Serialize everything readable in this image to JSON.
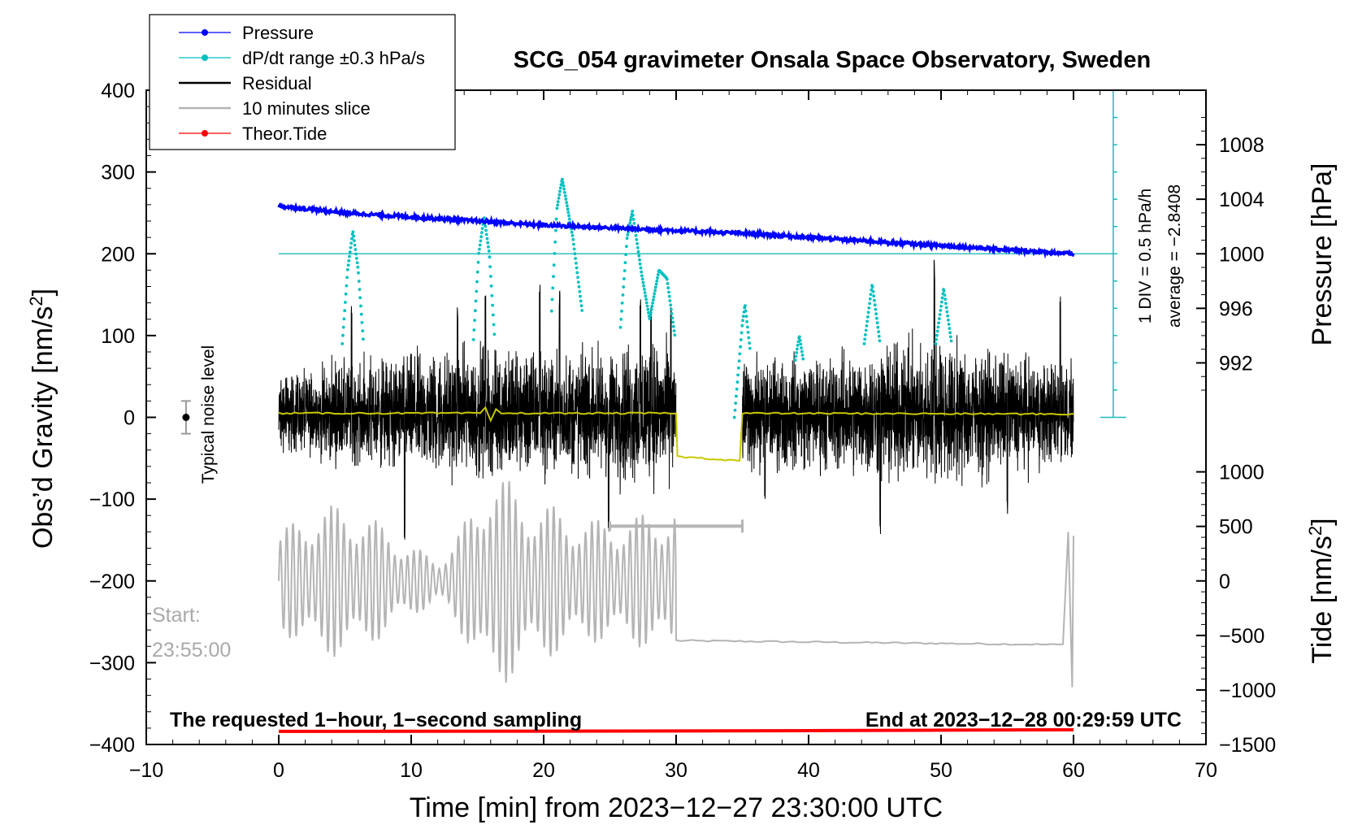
{
  "chart_data": {
    "type": "line",
    "title": "SCG_054 gravimeter Onsala Space Observatory, Sweden",
    "xlabel": "Time [min] from 2023−12−27 23:30:00 UTC",
    "ylabel_left": "Obs’d Gravity [nm/s",
    "ylabel_left_sup": "2",
    "ylabel_left_close": "]",
    "ylabel_right_pressure": "Pressure [hPa]",
    "ylabel_right_tide": "Tide [nm/s",
    "ylabel_right_tide_sup": "2",
    "ylabel_right_tide_close": "]",
    "xlim": [
      -10,
      70
    ],
    "ylim_left": [
      -400,
      400
    ],
    "x_ticks": [
      -10,
      0,
      10,
      20,
      30,
      40,
      50,
      60,
      70
    ],
    "x_tick_labels": [
      "−10",
      "0",
      "10",
      "20",
      "30",
      "40",
      "50",
      "60",
      "70"
    ],
    "y_left_ticks": [
      400,
      300,
      200,
      100,
      0,
      -100,
      -200,
      -300,
      -400
    ],
    "y_left_tick_labels": [
      "400",
      "300",
      "200",
      "100",
      "0",
      "−100",
      "−200",
      "−300",
      "−400"
    ],
    "pressure_axis": {
      "ticks": [
        1008,
        1004,
        1000,
        996,
        992
      ],
      "tick_labels": [
        "1008",
        "1004",
        "1000",
        "996",
        "992"
      ],
      "map": {
        "value_a": 1000,
        "gravity_a": 200,
        "value_b": 1004,
        "gravity_b": 266.7
      }
    },
    "tide_axis": {
      "ticks": [
        1000,
        500,
        0,
        -500,
        -1000,
        -1500
      ],
      "tick_labels": [
        "1000",
        "500",
        "0",
        "−500",
        "−1000",
        "−1500"
      ],
      "map": {
        "value_a": 0,
        "gravity_a": -200,
        "value_b": -1500,
        "gravity_b": -400
      }
    },
    "legend": [
      {
        "name": "Pressure",
        "color": "#0000ff",
        "marker": true
      },
      {
        "name": "dP/dt range ±0.3 hPa/s",
        "color": "#00c0c0",
        "marker": true
      },
      {
        "name": "Residual",
        "color": "#000000",
        "marker": false
      },
      {
        "name": "10 minutes slice",
        "color": "#b4b4b4",
        "marker": false
      },
      {
        "name": "Theor.Tide",
        "color": "#ff0000",
        "marker": true
      }
    ],
    "series": [
      {
        "name": "Pressure",
        "color": "#0000ff",
        "axis": "pressure",
        "x": [
          0,
          5,
          10,
          15,
          20,
          25,
          30,
          35,
          40,
          45,
          50,
          55,
          60
        ],
        "y": [
          1003.5,
          1003.0,
          1002.7,
          1002.4,
          1002.1,
          1001.9,
          1001.7,
          1001.5,
          1001.2,
          1000.9,
          1000.6,
          1000.3,
          1000.0
        ]
      },
      {
        "name": "dP/dt range ±0.3 hPa/s",
        "color": "#00c0c0",
        "axis": "gravity",
        "baseline": 200,
        "segments": [
          {
            "x": [
              4.8,
              5.2,
              5.6,
              6.0,
              6.4
            ],
            "y": [
              90,
              180,
              228,
              180,
              90
            ]
          },
          {
            "x": [
              14.7,
              15.1,
              15.5,
              15.9,
              16.3
            ],
            "y": [
              95,
              200,
              245,
              200,
              95
            ]
          },
          {
            "x": [
              20.6,
              21.0,
              21.4,
              22.2,
              22.9
            ],
            "y": [
              130,
              255,
              292,
              220,
              130
            ]
          },
          {
            "x": [
              25.8,
              26.3,
              26.7,
              27.4,
              28.0,
              28.7,
              29.3,
              29.9
            ],
            "y": [
              110,
              220,
              252,
              175,
              120,
              180,
              170,
              100
            ]
          },
          {
            "x": [
              34.4,
              35.0,
              35.2,
              35.6
            ],
            "y": [
              0,
              115,
              138,
              80
            ]
          },
          {
            "x": [
              39.0,
              39.3,
              39.6
            ],
            "y": [
              70,
              100,
              70
            ]
          },
          {
            "x": [
              44.2,
              44.8,
              45.4
            ],
            "y": [
              90,
              163,
              90
            ]
          },
          {
            "x": [
              49.6,
              50.2,
              50.8
            ],
            "y": [
              90,
              158,
              90
            ]
          }
        ]
      },
      {
        "name": "Residual",
        "color": "#000000",
        "axis": "gravity",
        "baseline": 5,
        "gap": [
          30,
          35
        ],
        "spike_times": [
          5.5,
          9.5,
          13.5,
          15.6,
          19.7,
          21.2,
          24.9,
          27.3,
          28.1,
          29.6,
          36.7,
          45.4,
          49.5,
          55.0,
          59.0
        ],
        "spike_values": [
          140,
          -150,
          135,
          150,
          170,
          160,
          -140,
          145,
          150,
          140,
          -100,
          -145,
          197,
          -120,
          150
        ],
        "envelope_x": [
          0,
          5,
          10,
          15,
          20,
          25,
          28,
          30,
          35,
          40,
          45,
          50,
          55,
          60
        ],
        "envelope_y": [
          55,
          75,
          85,
          95,
          90,
          95,
          110,
          80,
          80,
          80,
          95,
          100,
          85,
          70
        ]
      },
      {
        "name": "Residual smoothed",
        "color": "#c8c800",
        "axis": "gravity",
        "x": [
          0,
          15.2,
          15.6,
          16.0,
          16.4,
          16.8,
          30,
          30.1,
          34.8,
          35.0,
          60
        ],
        "y": [
          5,
          5,
          12,
          -4,
          10,
          5,
          5,
          -48,
          -53,
          5,
          4
        ]
      },
      {
        "name": "10 minutes slice",
        "color": "#b4b4b4",
        "axis": "gravity",
        "x_start": 0,
        "x_end": 30,
        "center": -200,
        "amplitudes_x": [
          0,
          3,
          6,
          9,
          12,
          15,
          16,
          18,
          21,
          24,
          27,
          30
        ],
        "amplitudes_y": [
          60,
          95,
          90,
          55,
          25,
          95,
          150,
          110,
          90,
          75,
          80,
          95
        ],
        "flat_x": [
          30,
          59.2
        ],
        "flat_y": [
          -273,
          -278
        ],
        "end_spike_x": [
          59.2,
          59.6,
          59.9,
          60.0
        ],
        "end_spike_y": [
          -278,
          -140,
          -330,
          -145
        ]
      },
      {
        "name": "Theor.Tide",
        "color": "#ff0000",
        "axis": "tide",
        "x": [
          0,
          10,
          20,
          30,
          40,
          50,
          60
        ],
        "y": [
          -1380,
          -1379,
          -1378,
          -1376,
          -1373,
          -1369,
          -1365
        ]
      }
    ],
    "slice_bracket": {
      "x": [
        25,
        35
      ],
      "y": -133,
      "color": "#b4b4b4"
    },
    "pressure_rate_scale": {
      "x": 63,
      "y_range": [
        0,
        400
      ],
      "divisions": 12,
      "color": "#20b8b8",
      "label": "1 DIV = 0.5 hPa/h",
      "average_label": "average = −2.8408"
    },
    "noise_level": {
      "x": -7,
      "y": 0,
      "error": 20,
      "label": "Typical noise level"
    },
    "start_label": "Start:",
    "start_time": "23:55:00",
    "bottom_left_note": "The requested 1−hour, 1−second sampling",
    "bottom_right_note": "End at 2023−12−28 00:29:59 UTC"
  }
}
